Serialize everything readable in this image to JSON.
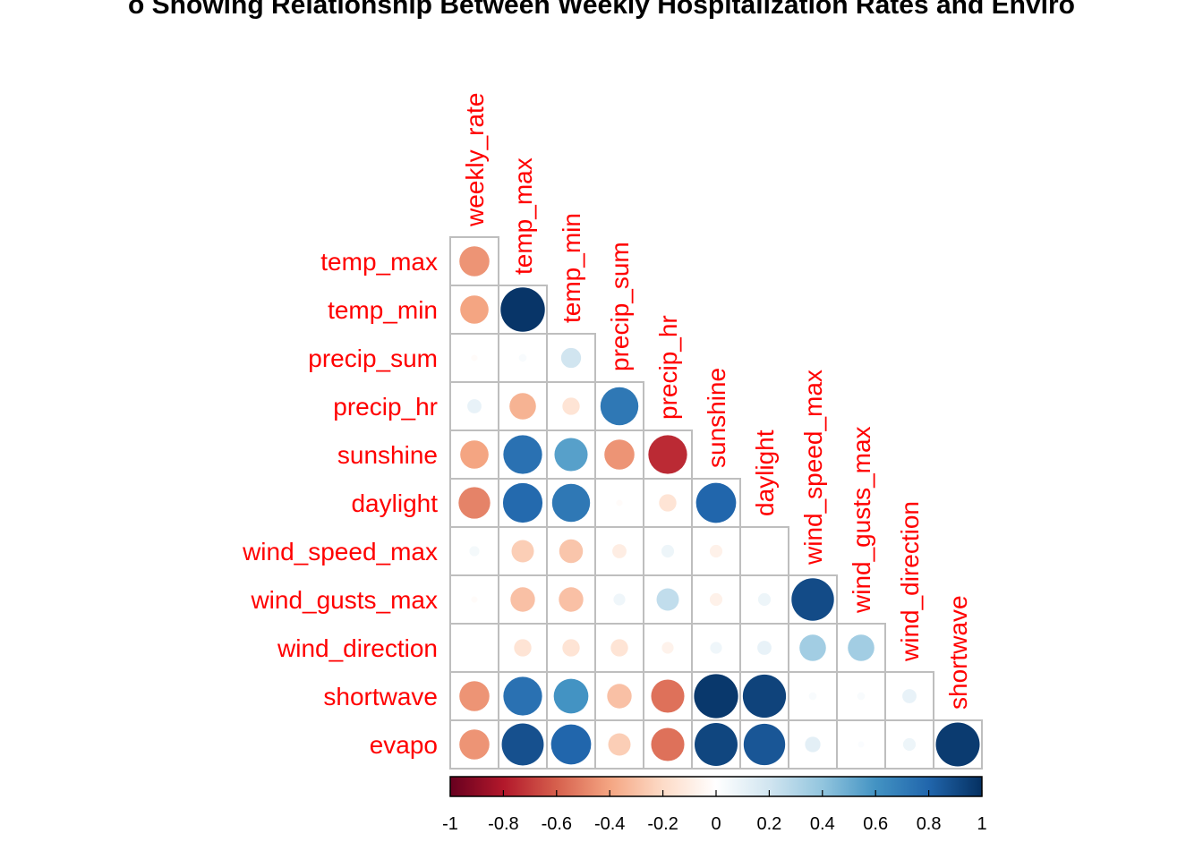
{
  "chart_data": {
    "type": "heatmap",
    "style": "corrplot-lower-circles",
    "title": "o Showing Relationship Between Weekly Hospitalization Rates and Enviro",
    "columns": [
      "weekly_rate",
      "temp_max",
      "temp_min",
      "precip_sum",
      "precip_hr",
      "sunshine",
      "daylight",
      "wind_speed_max",
      "wind_gusts_max",
      "wind_direction",
      "shortwave"
    ],
    "rows": [
      "temp_max",
      "temp_min",
      "precip_sum",
      "precip_hr",
      "sunshine",
      "daylight",
      "wind_speed_max",
      "wind_gusts_max",
      "wind_direction",
      "shortwave",
      "evapo"
    ],
    "matrix": [
      [
        -0.45
      ],
      [
        -0.4,
        0.98
      ],
      [
        -0.02,
        0.03,
        0.2
      ],
      [
        0.1,
        -0.35,
        -0.15,
        0.72
      ],
      [
        -0.4,
        0.75,
        0.55,
        -0.45,
        -0.75
      ],
      [
        -0.5,
        0.78,
        0.72,
        -0.02,
        -0.15,
        0.8
      ],
      [
        0.05,
        -0.25,
        -0.28,
        -0.1,
        0.08,
        -0.08,
        0.0
      ],
      [
        -0.02,
        -0.3,
        -0.3,
        0.07,
        0.25,
        -0.08,
        0.08,
        0.9
      ],
      [
        0.0,
        -0.15,
        -0.15,
        -0.15,
        -0.07,
        0.07,
        0.1,
        0.35,
        0.35
      ],
      [
        -0.45,
        0.75,
        0.6,
        -0.3,
        -0.55,
        0.97,
        0.93,
        0.03,
        0.03,
        0.1
      ],
      [
        -0.45,
        0.88,
        0.8,
        -0.25,
        -0.55,
        0.92,
        0.86,
        0.12,
        0.02,
        0.08,
        0.96
      ]
    ],
    "color_scale": {
      "min": -1,
      "max": 1,
      "stops": [
        "#67001F",
        "#B2182B",
        "#D6604D",
        "#F4A582",
        "#FDDBC7",
        "#FFFFFF",
        "#D1E5F0",
        "#92C5DE",
        "#4393C3",
        "#2166AC",
        "#053061"
      ],
      "tick_labels": [
        "-1",
        "-0.8",
        "-0.6",
        "-0.4",
        "-0.2",
        "0",
        "0.2",
        "0.4",
        "0.6",
        "0.8",
        "1"
      ]
    },
    "label_color": "#FF0000",
    "grid_color": "#BEBEBE",
    "legend_placement": "bottom"
  }
}
